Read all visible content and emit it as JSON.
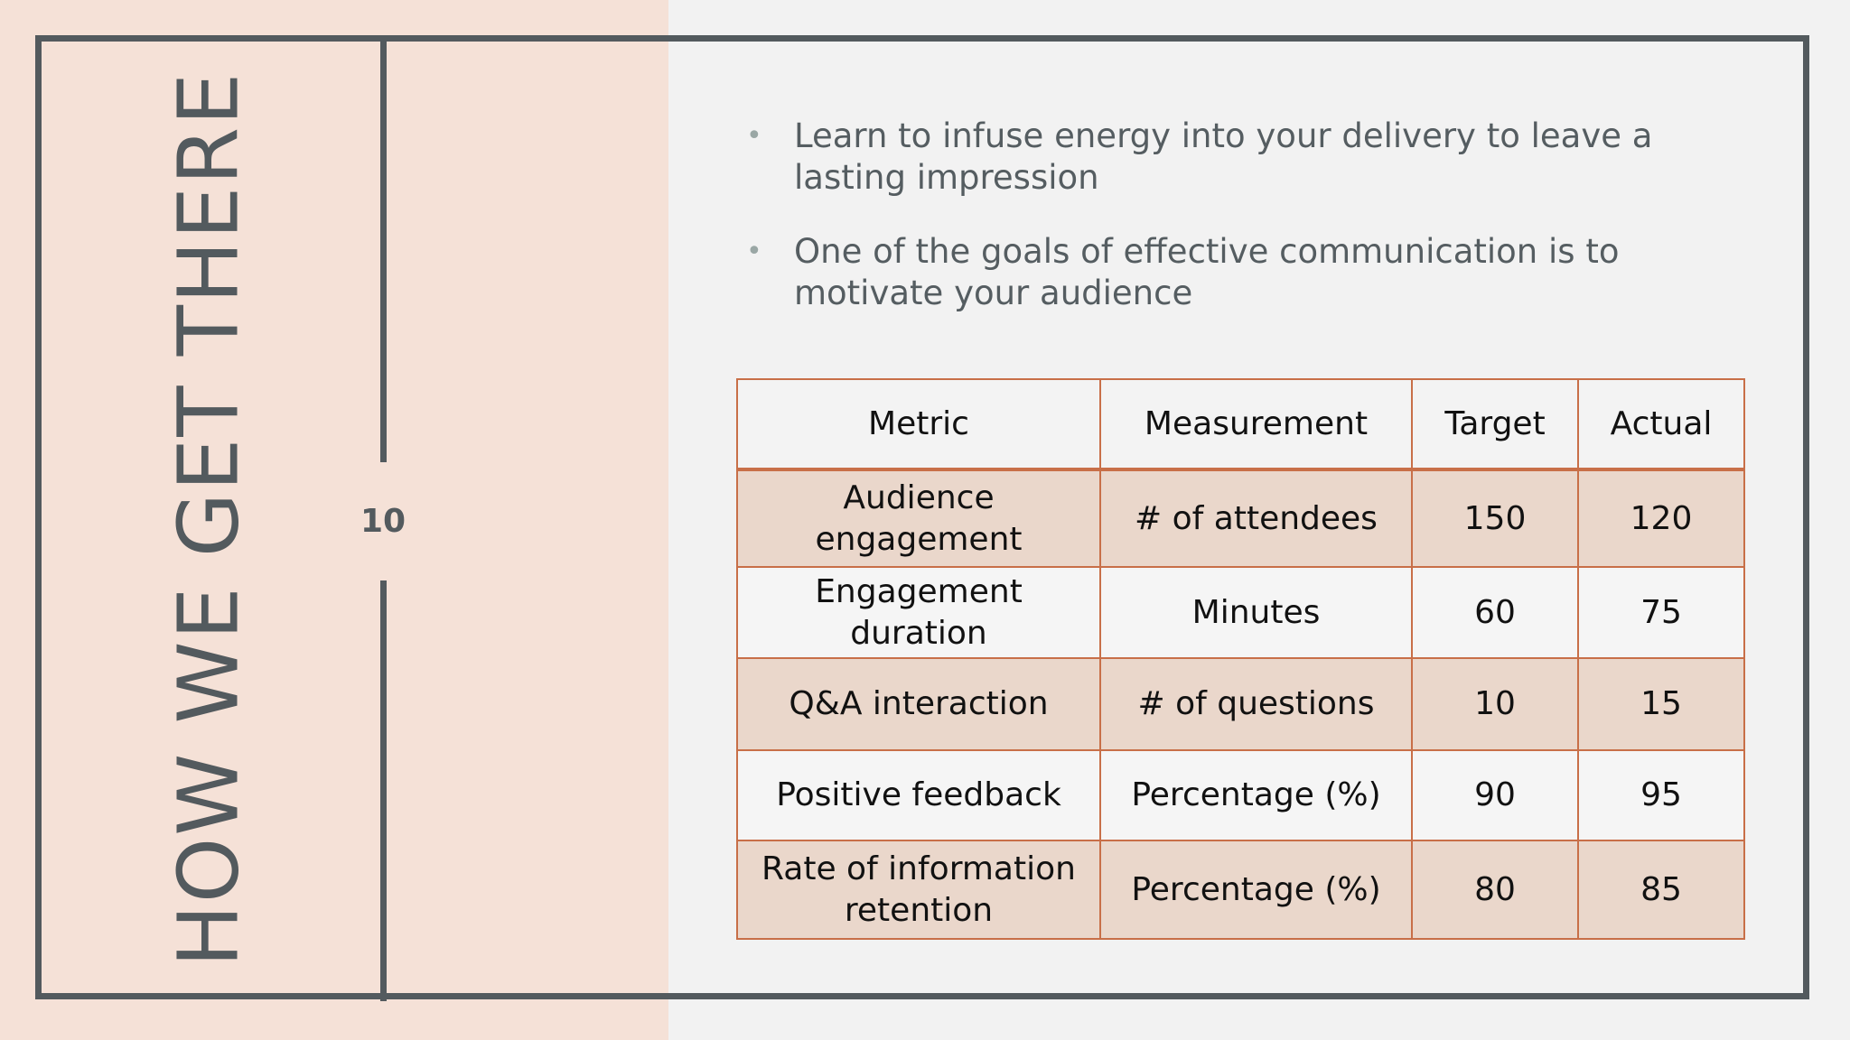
{
  "header": {
    "title": "HOW WE GET THERE",
    "page_number": "10"
  },
  "bullets": [
    "Learn to infuse energy into your delivery to leave a lasting impression",
    "One of the goals of effective communication is to motivate your audience"
  ],
  "table": {
    "columns": [
      "Metric",
      "Measurement",
      "Target",
      "Actual"
    ],
    "rows": [
      [
        "Audience engagement",
        "# of attendees",
        150,
        120
      ],
      [
        "Engagement duration",
        "Minutes",
        60,
        75
      ],
      [
        "Q&A interaction",
        "# of questions",
        10,
        15
      ],
      [
        "Positive feedback",
        "Percentage (%)",
        90,
        95
      ],
      [
        "Rate of information retention",
        "Percentage (%)",
        80,
        85
      ]
    ]
  }
}
